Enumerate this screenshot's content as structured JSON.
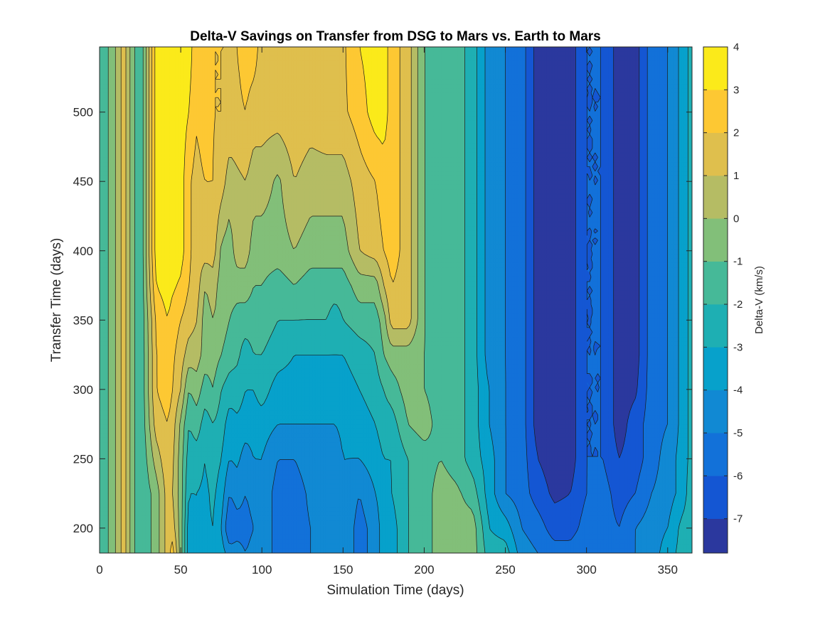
{
  "chart_data": {
    "type": "heatmap",
    "subtype": "filled-contour",
    "title": "Delta-V Savings on Transfer from DSG to Mars vs. Earth to Mars",
    "xlabel": "Simulation Time (days)",
    "ylabel": "Transfer Time (days)",
    "colorbar_label": "Delta-V (km/s)",
    "xlim": [
      0,
      365
    ],
    "ylim": [
      182,
      547
    ],
    "xticks": [
      0,
      50,
      100,
      150,
      200,
      250,
      300,
      350
    ],
    "yticks": [
      200,
      250,
      300,
      350,
      400,
      450,
      500
    ],
    "clim": [
      -7.8,
      4
    ],
    "cbticks": [
      4,
      3,
      2,
      1,
      0,
      -1,
      -2,
      -3,
      -4,
      -5,
      -6,
      -7
    ],
    "levels": [
      -7,
      -6,
      -5,
      -4,
      -3,
      -2,
      -1,
      0,
      1,
      2,
      3
    ],
    "colormap": "parula",
    "colormap_stops": [
      "#352a87",
      "#0f5cdd",
      "#1481d6",
      "#06a4ca",
      "#2eb7a4",
      "#87bf77",
      "#d1bb59",
      "#fec832",
      "#f9fb0e"
    ],
    "grid": false,
    "x_samples": [
      0,
      8,
      15,
      20,
      25,
      35,
      42,
      45,
      50,
      55,
      60,
      65,
      70,
      75,
      80,
      85,
      90,
      95,
      100,
      110,
      120,
      130,
      140,
      145,
      150,
      160,
      170,
      175,
      180,
      190,
      200,
      210,
      220,
      230,
      240,
      250,
      260,
      270,
      280,
      290,
      300,
      310,
      320,
      330,
      340,
      350,
      360,
      365
    ],
    "y_samples": [
      182,
      200,
      225,
      250,
      275,
      300,
      325,
      350,
      375,
      400,
      450,
      500,
      547
    ],
    "z_columns": [
      [
        -2.0,
        -2.0,
        -2.0,
        -2.0,
        -2.0,
        -2.0,
        -2.0,
        -2.0,
        -2.0,
        -2.0,
        -2.0,
        -2.0,
        -2.0
      ],
      [
        -0.5,
        -0.5,
        -0.5,
        -0.5,
        -0.5,
        -0.5,
        -0.5,
        -0.5,
        -0.5,
        -0.5,
        -0.5,
        -0.5,
        -0.5
      ],
      [
        1.5,
        1.5,
        1.5,
        1.5,
        1.5,
        1.5,
        1.5,
        1.5,
        1.5,
        1.5,
        1.5,
        1.5,
        1.5
      ],
      [
        -0.5,
        -0.5,
        -0.5,
        -0.5,
        -0.5,
        -0.5,
        -0.5,
        -0.5,
        -0.5,
        -0.5,
        -0.5,
        -0.5,
        -0.5
      ],
      [
        -2.0,
        -2.0,
        -2.0,
        -2.0,
        -2.0,
        -2.0,
        -2.0,
        -2.0,
        -2.0,
        -2.0,
        -2.0,
        -2.0,
        -2.0
      ],
      [
        -0.5,
        -0.5,
        -0.5,
        0.5,
        1.5,
        2.0,
        2.0,
        2.2,
        3.0,
        3.5,
        3.5,
        3.5,
        3.5
      ],
      [
        1.5,
        1.5,
        1.5,
        1.8,
        2.0,
        2.5,
        2.6,
        3.0,
        3.5,
        3.8,
        3.8,
        3.8,
        3.8
      ],
      [
        2.5,
        1.5,
        1.0,
        1.2,
        1.5,
        2.0,
        2.2,
        2.5,
        3.2,
        3.7,
        3.7,
        3.7,
        3.7
      ],
      [
        -0.5,
        -0.5,
        -0.5,
        -0.5,
        -0.2,
        1.0,
        1.5,
        2.0,
        2.8,
        3.5,
        3.5,
        3.5,
        3.5
      ],
      [
        -3.5,
        -3.5,
        -3.0,
        -2.5,
        -2.0,
        -1.0,
        0.5,
        1.5,
        2.0,
        2.2,
        2.2,
        3.0,
        3.5
      ],
      [
        -3.0,
        -3.0,
        -3.0,
        -2.5,
        -1.5,
        -0.5,
        0.5,
        1.0,
        1.5,
        1.5,
        1.5,
        2.2,
        2.2
      ],
      [
        -3.2,
        -3.2,
        -3.2,
        -3.0,
        -2.5,
        -1.5,
        -0.5,
        -0.5,
        0.0,
        1.5,
        2.0,
        3.0,
        3.0
      ],
      [
        -3.0,
        -3.0,
        -2.8,
        -2.5,
        -2.0,
        -1.0,
        -0.5,
        0.0,
        0.5,
        1.5,
        2.0,
        2.0,
        2.0
      ],
      [
        -3.5,
        -4.0,
        -3.5,
        -3.0,
        -2.5,
        -2.0,
        -1.0,
        -0.5,
        -0.5,
        -0.2,
        1.5,
        2.0,
        2.0
      ],
      [
        -4.5,
        -6.0,
        -5.0,
        -4.0,
        -3.5,
        -2.5,
        -1.5,
        -1.0,
        -0.5,
        -0.5,
        0.5,
        1.8,
        2.0
      ],
      [
        -4.5,
        -5.5,
        -4.5,
        -3.8,
        -3.2,
        -2.5,
        -1.8,
        -1.5,
        -0.5,
        0.5,
        0.8,
        1.8,
        2.0
      ],
      [
        -5.0,
        -5.5,
        -5.0,
        -4.5,
        -3.5,
        -3.0,
        -2.5,
        -1.5,
        -0.5,
        0.5,
        1.0,
        2.0,
        2.5
      ],
      [
        -4.5,
        -5.0,
        -4.5,
        -4.0,
        -3.5,
        -3.0,
        -2.0,
        -1.5,
        -1.0,
        -0.5,
        0.5,
        1.5,
        2.5
      ],
      [
        -4.2,
        -4.2,
        -4.2,
        -4.0,
        -3.5,
        -2.5,
        -2.0,
        -1.5,
        -1.0,
        -0.5,
        0.5,
        1.5,
        1.5
      ],
      [
        -5.5,
        -5.5,
        -5.5,
        -5.0,
        -4.0,
        -3.5,
        -2.5,
        -2.0,
        -1.5,
        -0.5,
        -0.2,
        1.5,
        1.5
      ],
      [
        -5.5,
        -5.5,
        -5.5,
        -5.0,
        -4.0,
        -3.5,
        -3.0,
        -2.0,
        -1.0,
        0.0,
        1.0,
        1.8,
        1.8
      ],
      [
        -5.0,
        -5.0,
        -4.8,
        -4.5,
        -4.0,
        -3.5,
        -3.0,
        -2.0,
        -1.5,
        -0.5,
        0.5,
        1.5,
        1.5
      ],
      [
        -4.5,
        -4.5,
        -4.5,
        -4.5,
        -4.0,
        -3.5,
        -3.0,
        -2.0,
        -1.5,
        -0.5,
        0.5,
        1.8,
        1.8
      ],
      [
        -4.5,
        -4.5,
        -4.5,
        -4.5,
        -4.0,
        -3.5,
        -3.0,
        -2.5,
        -1.5,
        -0.5,
        0.5,
        1.8,
        1.8
      ],
      [
        -4.0,
        -4.0,
        -4.0,
        -4.0,
        -3.8,
        -3.5,
        -3.0,
        -2.0,
        -1.5,
        -0.5,
        0.5,
        1.8,
        1.8
      ],
      [
        -5.5,
        -5.5,
        -5.0,
        -4.0,
        -3.5,
        -3.0,
        -2.5,
        -1.5,
        -0.5,
        1.0,
        1.5,
        2.5,
        3.0
      ],
      [
        -4.5,
        -4.5,
        -4.0,
        -3.5,
        -3.0,
        -2.5,
        -2.0,
        -1.5,
        -0.5,
        1.5,
        2.0,
        3.5,
        3.5
      ],
      [
        -3.5,
        -3.5,
        -3.5,
        -3.0,
        -2.5,
        -2.0,
        -1.0,
        -0.5,
        1.0,
        2.0,
        2.5,
        3.5,
        3.5
      ],
      [
        -3.5,
        -3.5,
        -3.0,
        -3.0,
        -2.5,
        -1.5,
        -0.5,
        1.5,
        2.0,
        2.5,
        2.5,
        2.5,
        2.5
      ],
      [
        -2.0,
        -2.0,
        -2.0,
        -2.0,
        -1.0,
        -0.5,
        -0.5,
        1.5,
        1.5,
        1.5,
        1.5,
        1.5,
        1.5
      ],
      [
        -1.5,
        -1.5,
        -1.5,
        -1.5,
        -0.5,
        -1.0,
        -1.0,
        -1.0,
        -1.0,
        -1.0,
        -1.0,
        -1.0,
        -1.0
      ],
      [
        -0.5,
        -0.5,
        -0.5,
        -1.0,
        -1.5,
        -1.5,
        -1.5,
        -1.5,
        -1.5,
        -1.5,
        -1.5,
        -1.5,
        -1.5
      ],
      [
        -0.5,
        -0.5,
        -0.8,
        -1.5,
        -1.5,
        -1.5,
        -1.5,
        -1.5,
        -1.5,
        -1.5,
        -1.5,
        -1.5,
        -1.5
      ],
      [
        -0.5,
        -0.5,
        -1.5,
        -2.5,
        -2.5,
        -2.5,
        -2.5,
        -2.5,
        -2.5,
        -2.5,
        -2.5,
        -2.5,
        -2.5
      ],
      [
        -2.5,
        -3.0,
        -3.5,
        -3.5,
        -4.0,
        -4.0,
        -4.5,
        -4.5,
        -4.5,
        -4.5,
        -4.5,
        -4.5,
        -4.5
      ],
      [
        -2.5,
        -3.5,
        -5.0,
        -5.0,
        -5.0,
        -5.0,
        -5.0,
        -5.0,
        -5.0,
        -5.0,
        -5.0,
        -5.0,
        -5.0
      ],
      [
        -4.5,
        -5.0,
        -5.5,
        -5.5,
        -5.5,
        -5.5,
        -5.5,
        -5.5,
        -5.5,
        -5.5,
        -5.5,
        -5.5,
        -5.5
      ],
      [
        -5.0,
        -5.5,
        -6.5,
        -7.0,
        -7.5,
        -7.5,
        -7.5,
        -7.5,
        -7.5,
        -7.5,
        -7.5,
        -7.5,
        -7.5
      ],
      [
        -5.5,
        -6.5,
        -7.2,
        -7.5,
        -7.5,
        -7.5,
        -7.5,
        -7.5,
        -7.5,
        -7.5,
        -7.5,
        -7.5,
        -7.5
      ],
      [
        -5.5,
        -6.5,
        -7.0,
        -7.5,
        -7.5,
        -7.5,
        -7.5,
        -7.5,
        -7.5,
        -7.5,
        -7.5,
        -7.5,
        -7.5
      ],
      [
        -5.0,
        -5.5,
        -6.0,
        -6.0,
        -6.0,
        -6.0,
        -6.0,
        -6.0,
        -6.0,
        -6.0,
        -6.0,
        -6.0,
        -6.0
      ],
      [
        -5.0,
        -5.5,
        -5.5,
        -6.0,
        -6.0,
        -6.0,
        -6.0,
        -6.0,
        -6.0,
        -6.0,
        -6.0,
        -6.0,
        -6.0
      ],
      [
        -5.5,
        -6.0,
        -6.5,
        -7.0,
        -7.5,
        -7.5,
        -7.5,
        -7.5,
        -7.5,
        -7.5,
        -7.5,
        -7.5,
        -7.5
      ],
      [
        -5.0,
        -5.0,
        -6.0,
        -6.5,
        -6.5,
        -7.2,
        -7.5,
        -7.5,
        -7.5,
        -7.5,
        -7.5,
        -7.5,
        -7.5
      ],
      [
        -4.5,
        -4.5,
        -5.0,
        -5.5,
        -5.5,
        -5.5,
        -5.5,
        -5.5,
        -5.5,
        -5.5,
        -5.5,
        -5.5,
        -5.5
      ],
      [
        -3.5,
        -4.0,
        -4.5,
        -4.5,
        -5.0,
        -5.0,
        -5.0,
        -5.0,
        -5.0,
        -5.0,
        -5.0,
        -5.0,
        -5.0
      ],
      [
        -2.5,
        -2.5,
        -3.5,
        -3.5,
        -3.5,
        -3.5,
        -3.5,
        -3.5,
        -3.5,
        -3.5,
        -3.5,
        -3.5,
        -3.5
      ],
      [
        -2.0,
        -2.0,
        -2.0,
        -2.5,
        -2.5,
        -2.5,
        -2.5,
        -2.5,
        -2.5,
        -2.5,
        -2.5,
        -2.5,
        -2.5
      ]
    ]
  }
}
